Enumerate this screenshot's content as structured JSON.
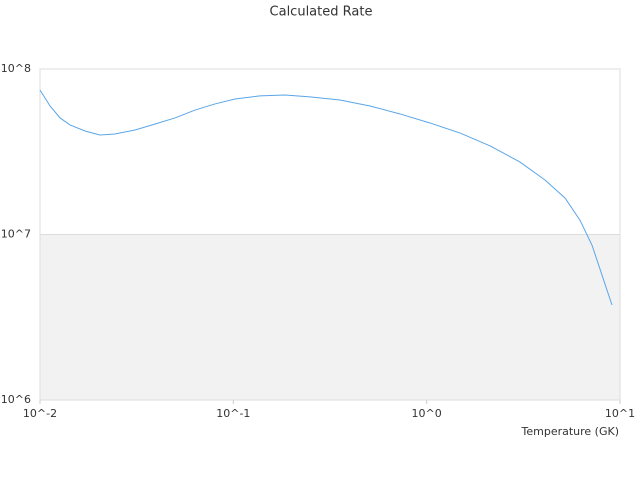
{
  "chart_data": {
    "type": "line",
    "title": "Calculated Rate",
    "x_label": "Temperature (GK)",
    "xscale": "log",
    "yscale": "log",
    "grid": true,
    "xlim": [
      0.01,
      10
    ],
    "ylim": [
      1000000,
      100000000
    ],
    "xticks": [
      {
        "value": 0.01,
        "label": "10^-2"
      },
      {
        "value": 0.1,
        "label": "10^-1"
      },
      {
        "value": 1,
        "label": "10^0"
      },
      {
        "value": 10,
        "label": "10^1"
      }
    ],
    "yticks": [
      {
        "value": 1000000,
        "label": "10^6"
      },
      {
        "value": 10000000,
        "label": "10^7"
      },
      {
        "value": 100000000,
        "label": "10^8"
      }
    ],
    "x": [
      0.01,
      0.01127,
      0.0127,
      0.0143,
      0.0171,
      0.0204,
      0.0244,
      0.031,
      0.0394,
      0.0499,
      0.0634,
      0.0804,
      0.102,
      0.137,
      0.185,
      0.249,
      0.356,
      0.509,
      0.728,
      1.04,
      1.49,
      2.13,
      3.04,
      4.1,
      5.2,
      6.21,
      7.16,
      8.07,
      9.09
    ],
    "series": [
      {
        "color": "#5aa5e8",
        "values": [
          74700000,
          59800000,
          50600000,
          45900000,
          42200000,
          39900000,
          40500000,
          42800000,
          46500000,
          50600000,
          56500000,
          61500000,
          65900000,
          68800000,
          69700000,
          67800000,
          65000000,
          59800000,
          53500000,
          47200000,
          41000000,
          34300000,
          27400000,
          21300000,
          16600000,
          12200000,
          8640000,
          5690000,
          3750000
        ]
      }
    ]
  }
}
